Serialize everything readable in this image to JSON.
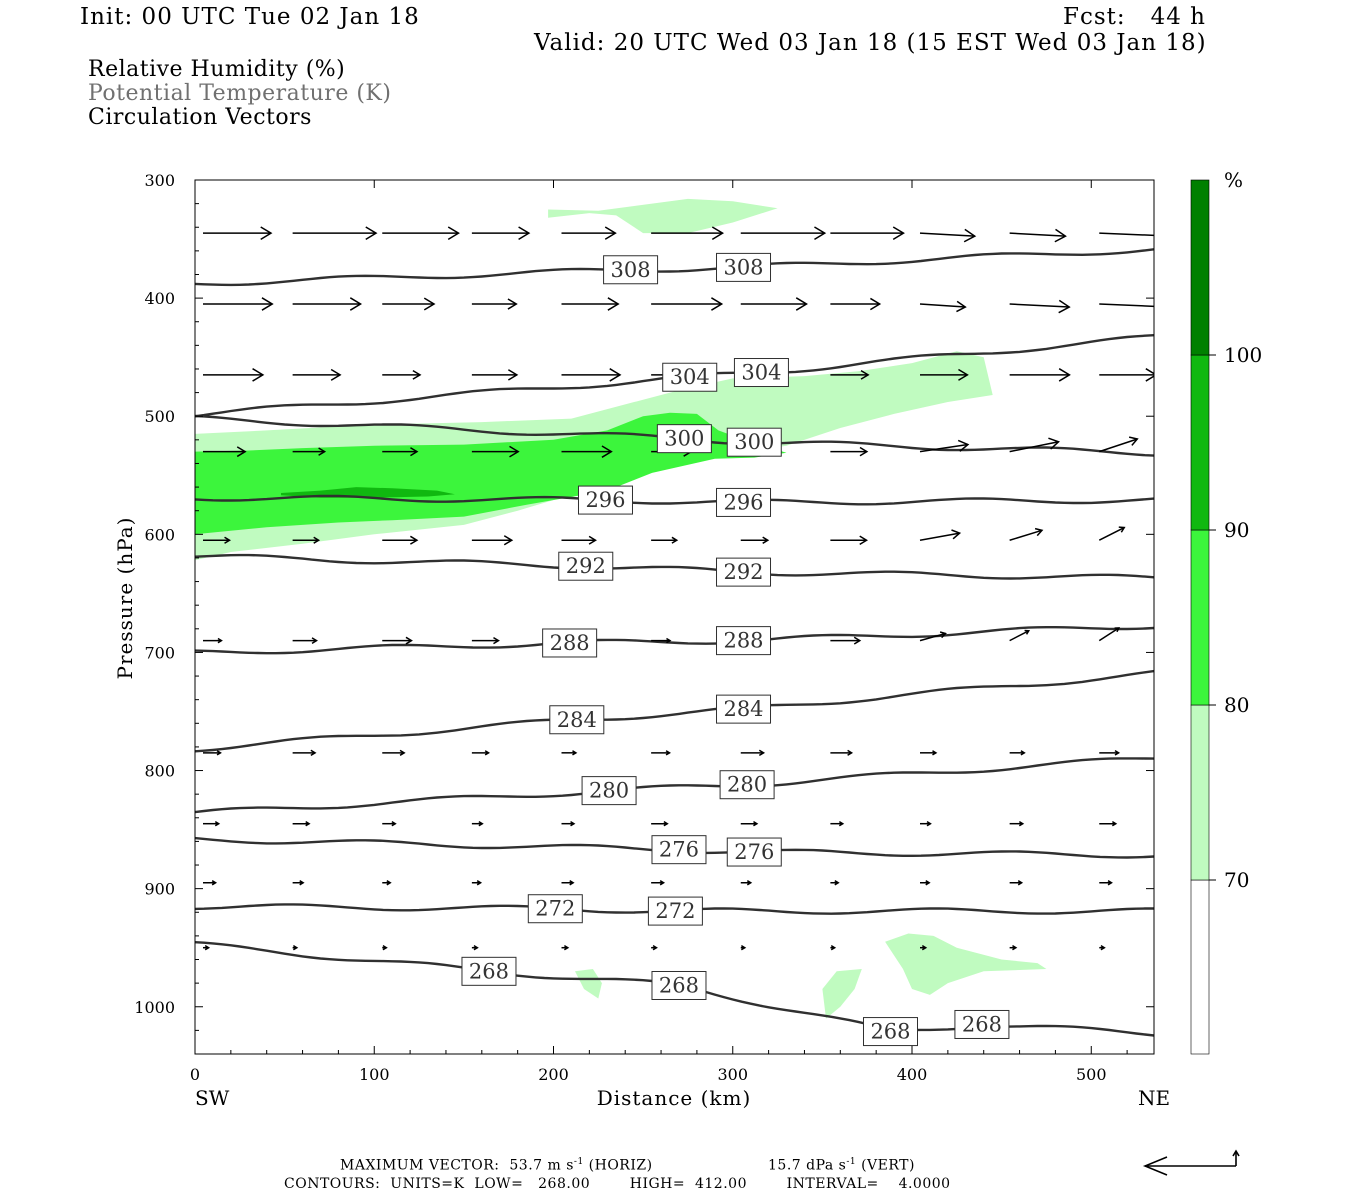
{
  "header": {
    "init": "Init: 00 UTC Tue 02 Jan 18",
    "fcst": "Fcst:   44 h",
    "valid": "Valid: 20 UTC Wed 03 Jan 18 (15 EST Wed 03 Jan 18)"
  },
  "legend": {
    "rh": "Relative Humidity (%)",
    "theta": "Potential Temperature (K)",
    "vectors": "Circulation Vectors"
  },
  "colors": {
    "rh70": "#c0fbc0",
    "rh80": "#3cf53c",
    "rh90": "#10b810",
    "rh100": "#008000",
    "contour": "#303030",
    "theta_text": "#707070"
  },
  "chart_data": {
    "type": "cross-section",
    "xlabel": "Distance (km)",
    "ylabel": "Pressure (hPa)",
    "xlim": [
      0,
      535
    ],
    "ylim": [
      1040,
      300
    ],
    "x_ticks": [
      0,
      100,
      200,
      300,
      400,
      500
    ],
    "y_ticks": [
      300,
      400,
      500,
      600,
      700,
      800,
      900,
      1000
    ],
    "x_end_labels": {
      "left": "SW",
      "right": "NE"
    },
    "colorbar": {
      "unit": "%",
      "levels": [
        70,
        80,
        90,
        100
      ],
      "labels": [
        "70",
        "80",
        "90",
        "100"
      ]
    },
    "rh_regions": [
      {
        "level": 70,
        "points": [
          [
            0,
            515
          ],
          [
            40,
            512
          ],
          [
            100,
            507
          ],
          [
            160,
            505
          ],
          [
            210,
            502
          ],
          [
            240,
            490
          ],
          [
            270,
            478
          ],
          [
            300,
            468
          ],
          [
            340,
            466
          ],
          [
            370,
            462
          ],
          [
            400,
            455
          ],
          [
            425,
            445
          ],
          [
            440,
            450
          ],
          [
            445,
            482
          ],
          [
            420,
            488
          ],
          [
            390,
            498
          ],
          [
            360,
            510
          ],
          [
            330,
            525
          ],
          [
            300,
            532
          ],
          [
            270,
            535
          ],
          [
            250,
            545
          ],
          [
            220,
            562
          ],
          [
            180,
            580
          ],
          [
            150,
            592
          ],
          [
            100,
            600
          ],
          [
            60,
            608
          ],
          [
            20,
            615
          ],
          [
            0,
            622
          ]
        ]
      },
      {
        "level": 70,
        "points": [
          [
            197,
            325
          ],
          [
            225,
            326
          ],
          [
            245,
            322
          ],
          [
            275,
            316
          ],
          [
            300,
            318
          ],
          [
            325,
            324
          ],
          [
            300,
            336
          ],
          [
            275,
            345
          ],
          [
            250,
            345
          ],
          [
            235,
            330
          ],
          [
            220,
            328
          ],
          [
            197,
            332
          ]
        ]
      },
      {
        "level": 70,
        "points": [
          [
            212,
            970
          ],
          [
            222,
            968
          ],
          [
            227,
            980
          ],
          [
            225,
            993
          ],
          [
            217,
            985
          ]
        ]
      },
      {
        "level": 70,
        "points": [
          [
            350,
            985
          ],
          [
            358,
            970
          ],
          [
            372,
            968
          ],
          [
            368,
            985
          ],
          [
            360,
            1000
          ],
          [
            352,
            1010
          ]
        ]
      },
      {
        "level": 70,
        "points": [
          [
            385,
            945
          ],
          [
            398,
            938
          ],
          [
            412,
            940
          ],
          [
            425,
            950
          ],
          [
            450,
            960
          ],
          [
            470,
            963
          ],
          [
            475,
            968
          ],
          [
            440,
            970
          ],
          [
            420,
            980
          ],
          [
            410,
            990
          ],
          [
            400,
            985
          ],
          [
            395,
            968
          ]
        ]
      },
      {
        "level": 80,
        "points": [
          [
            0,
            530
          ],
          [
            30,
            529
          ],
          [
            60,
            527
          ],
          [
            100,
            525
          ],
          [
            150,
            524
          ],
          [
            200,
            520
          ],
          [
            230,
            512
          ],
          [
            250,
            500
          ],
          [
            265,
            497
          ],
          [
            280,
            498
          ],
          [
            292,
            512
          ],
          [
            310,
            522
          ],
          [
            330,
            531
          ],
          [
            312,
            535
          ],
          [
            290,
            536
          ],
          [
            255,
            548
          ],
          [
            230,
            563
          ],
          [
            185,
            575
          ],
          [
            150,
            585
          ],
          [
            110,
            588
          ],
          [
            80,
            590
          ],
          [
            40,
            594
          ],
          [
            0,
            600
          ]
        ]
      },
      {
        "level": 90,
        "points": [
          [
            48,
            565
          ],
          [
            70,
            563
          ],
          [
            90,
            560
          ],
          [
            110,
            561
          ],
          [
            135,
            563
          ],
          [
            145,
            566
          ],
          [
            130,
            568
          ],
          [
            100,
            569
          ],
          [
            70,
            569
          ],
          [
            48,
            567
          ]
        ]
      }
    ],
    "theta_contours": [
      {
        "value": 308,
        "labels": [
          [
            243,
            376
          ],
          [
            306,
            374
          ]
        ]
      },
      {
        "value": 304,
        "labels": [
          [
            276,
            467
          ],
          [
            316,
            463
          ]
        ]
      },
      {
        "value": 300,
        "labels": [
          [
            273,
            519
          ],
          [
            312,
            522
          ]
        ]
      },
      {
        "value": 296,
        "labels": [
          [
            229,
            571
          ],
          [
            306,
            573
          ]
        ]
      },
      {
        "value": 292,
        "labels": [
          [
            218,
            627
          ],
          [
            306,
            632
          ]
        ]
      },
      {
        "value": 288,
        "labels": [
          [
            209,
            692
          ],
          [
            306,
            690
          ]
        ]
      },
      {
        "value": 284,
        "labels": [
          [
            213,
            757
          ],
          [
            306,
            748
          ]
        ]
      },
      {
        "value": 280,
        "labels": [
          [
            231,
            817
          ],
          [
            308,
            812
          ]
        ]
      },
      {
        "value": 276,
        "labels": [
          [
            270,
            867
          ],
          [
            312,
            869
          ]
        ]
      },
      {
        "value": 272,
        "labels": [
          [
            201,
            917
          ],
          [
            268,
            919
          ]
        ]
      },
      {
        "value": 268,
        "labels": [
          [
            164,
            970
          ],
          [
            270,
            982
          ],
          [
            388,
            1021
          ],
          [
            439,
            1015
          ]
        ]
      }
    ],
    "max_vector_label": "MAXIMUM VECTOR:  53.7 m s",
    "max_vector_horiz": "(HORIZ)",
    "max_vector_vert_value": "15.7 dPa s",
    "max_vector_vert": "(VERT)",
    "exponent": "-1",
    "contours_info": "CONTOURS:  UNITS=K  LOW=   268.00        HIGH=  412.00        INTERVAL=    4.0000"
  }
}
